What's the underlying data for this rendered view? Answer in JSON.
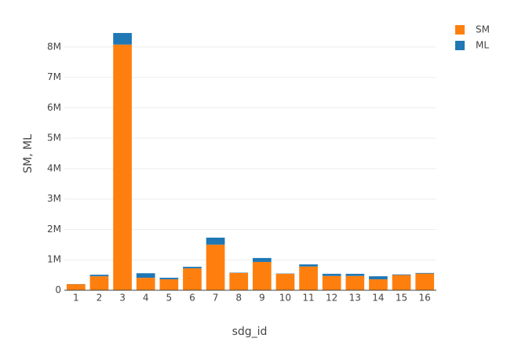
{
  "chart_data": {
    "type": "stacked_bar",
    "x_label": "sdg_id",
    "y_label": "SM, ML",
    "categories": [
      "1",
      "2",
      "3",
      "4",
      "5",
      "6",
      "7",
      "8",
      "9",
      "10",
      "11",
      "12",
      "13",
      "14",
      "15",
      "16"
    ],
    "series": [
      {
        "name": "SM",
        "color": "#ff7f0e",
        "values": [
          200000,
          460000,
          8080000,
          410000,
          360000,
          720000,
          1500000,
          570000,
          930000,
          540000,
          780000,
          470000,
          470000,
          360000,
          500000,
          550000
        ]
      },
      {
        "name": "ML",
        "color": "#1f77b4",
        "values": [
          5000,
          50000,
          380000,
          150000,
          50000,
          50000,
          230000,
          10000,
          130000,
          10000,
          70000,
          70000,
          70000,
          100000,
          20000,
          20000
        ]
      }
    ],
    "ylim": [
      0,
      8900000
    ],
    "yticks": [
      0,
      {
        "value": 1000000,
        "label": "1M"
      },
      {
        "value": 2000000,
        "label": "2M"
      },
      {
        "value": 3000000,
        "label": "3M"
      },
      {
        "value": 4000000,
        "label": "4M"
      },
      {
        "value": 5000000,
        "label": "5M"
      },
      {
        "value": 6000000,
        "label": "6M"
      },
      {
        "value": 7000000,
        "label": "7M"
      },
      {
        "value": 8000000,
        "label": "8M"
      }
    ],
    "grid": true,
    "legend": "top-right"
  }
}
